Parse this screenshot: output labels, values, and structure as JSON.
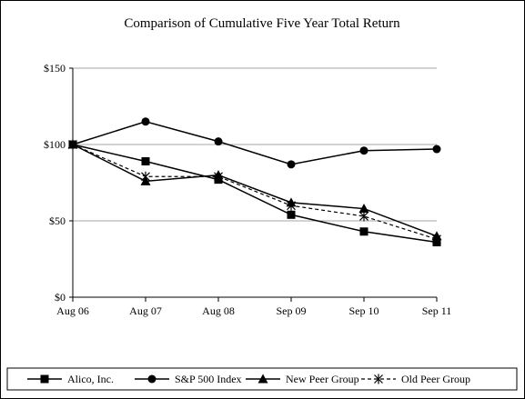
{
  "chart_data": {
    "type": "line",
    "title": "Comparison of Cumulative Five Year Total Return",
    "categories": [
      "Aug 06",
      "Aug 07",
      "Aug 08",
      "Sep 09",
      "Sep 10",
      "Sep 11"
    ],
    "y_ticks": [
      "$0",
      "$50",
      "$100",
      "$150"
    ],
    "ylim": [
      0,
      150
    ],
    "grid": "horizontal major gridlines",
    "legend": "bottom",
    "series": [
      {
        "name": "Alico, Inc.",
        "marker": "square",
        "dashed": false,
        "values": [
          100,
          89,
          77,
          54,
          43,
          36
        ]
      },
      {
        "name": "S&P 500 Index",
        "marker": "circle",
        "dashed": false,
        "values": [
          100,
          115,
          102,
          87,
          96,
          97
        ]
      },
      {
        "name": "New Peer Group",
        "marker": "triangle",
        "dashed": false,
        "values": [
          100,
          76,
          80,
          62,
          58,
          40
        ]
      },
      {
        "name": "Old Peer Group",
        "marker": "asterisk",
        "dashed": true,
        "values": [
          100,
          79,
          79,
          60,
          53,
          38
        ]
      }
    ]
  }
}
